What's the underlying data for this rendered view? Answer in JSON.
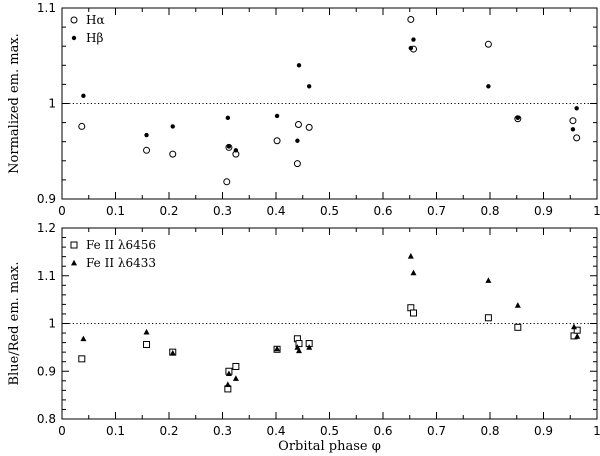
{
  "chart_data": [
    {
      "type": "scatter",
      "ylabel": "Normalized em. max.",
      "xlabel": "",
      "xlim": [
        0,
        1
      ],
      "ylim": [
        0.9,
        1.1
      ],
      "xticks": [
        0,
        0.1,
        0.2,
        0.3,
        0.4,
        0.5,
        0.6,
        0.7,
        0.8,
        0.9,
        1
      ],
      "xtick_labels": [
        "0",
        "0.1",
        "0.2",
        "0.3",
        "0.4",
        "0.5",
        "0.6",
        "0.7",
        "0.8",
        "0.9",
        "1"
      ],
      "yticks": [
        0.9,
        1,
        1.1
      ],
      "ytick_labels": [
        "0.9",
        "1",
        "1.1"
      ],
      "reference_line": 1,
      "legend_position": "top-left",
      "series": [
        {
          "name": "Hα",
          "marker": "open-circle",
          "x": [
            0.037,
            0.158,
            0.207,
            0.308,
            0.312,
            0.325,
            0.402,
            0.44,
            0.442,
            0.462,
            0.652,
            0.657,
            0.797,
            0.852,
            0.955,
            0.962
          ],
          "y": [
            0.976,
            0.951,
            0.947,
            0.918,
            0.954,
            0.947,
            0.961,
            0.937,
            0.978,
            0.975,
            1.088,
            1.057,
            1.062,
            0.984,
            0.982,
            0.964
          ]
        },
        {
          "name": "Hβ",
          "marker": "filled-circle",
          "x": [
            0.04,
            0.158,
            0.207,
            0.31,
            0.312,
            0.325,
            0.402,
            0.44,
            0.443,
            0.462,
            0.652,
            0.657,
            0.797,
            0.852,
            0.955,
            0.962
          ],
          "y": [
            1.008,
            0.967,
            0.976,
            0.985,
            0.955,
            0.951,
            0.987,
            0.961,
            1.04,
            1.018,
            1.058,
            1.067,
            1.018,
            0.985,
            0.973,
            0.995
          ]
        }
      ]
    },
    {
      "type": "scatter",
      "ylabel": "Blue/Red em. max.",
      "xlabel": "Orbital phase φ",
      "xlim": [
        0,
        1
      ],
      "ylim": [
        0.8,
        1.2
      ],
      "xticks": [
        0,
        0.1,
        0.2,
        0.3,
        0.4,
        0.5,
        0.6,
        0.7,
        0.8,
        0.9,
        1
      ],
      "xtick_labels": [
        "0",
        "0.1",
        "0.2",
        "0.3",
        "0.4",
        "0.5",
        "0.6",
        "0.7",
        "0.8",
        "0.9",
        "1"
      ],
      "yticks": [
        0.8,
        0.9,
        1,
        1.1,
        1.2
      ],
      "ytick_labels": [
        "0.8",
        "0.9",
        "1",
        "1.1",
        "1.2"
      ],
      "reference_line": 1,
      "legend_position": "top-left",
      "series": [
        {
          "name": "Fe II λ6456",
          "marker": "open-square",
          "x": [
            0.037,
            0.158,
            0.207,
            0.31,
            0.312,
            0.325,
            0.402,
            0.44,
            0.443,
            0.462,
            0.652,
            0.657,
            0.797,
            0.852,
            0.957,
            0.963
          ],
          "y": [
            0.926,
            0.956,
            0.94,
            0.863,
            0.9,
            0.91,
            0.946,
            0.968,
            0.958,
            0.958,
            1.033,
            1.022,
            1.012,
            0.992,
            0.974,
            0.986
          ]
        },
        {
          "name": "Fe II λ6433",
          "marker": "filled-triangle",
          "x": [
            0.04,
            0.158,
            0.207,
            0.31,
            0.312,
            0.325,
            0.402,
            0.44,
            0.443,
            0.462,
            0.652,
            0.657,
            0.797,
            0.852,
            0.957,
            0.963
          ],
          "y": [
            0.968,
            0.982,
            0.938,
            0.872,
            0.895,
            0.885,
            0.947,
            0.95,
            0.943,
            0.95,
            1.141,
            1.106,
            1.09,
            1.038,
            0.993,
            0.973
          ]
        }
      ]
    }
  ]
}
